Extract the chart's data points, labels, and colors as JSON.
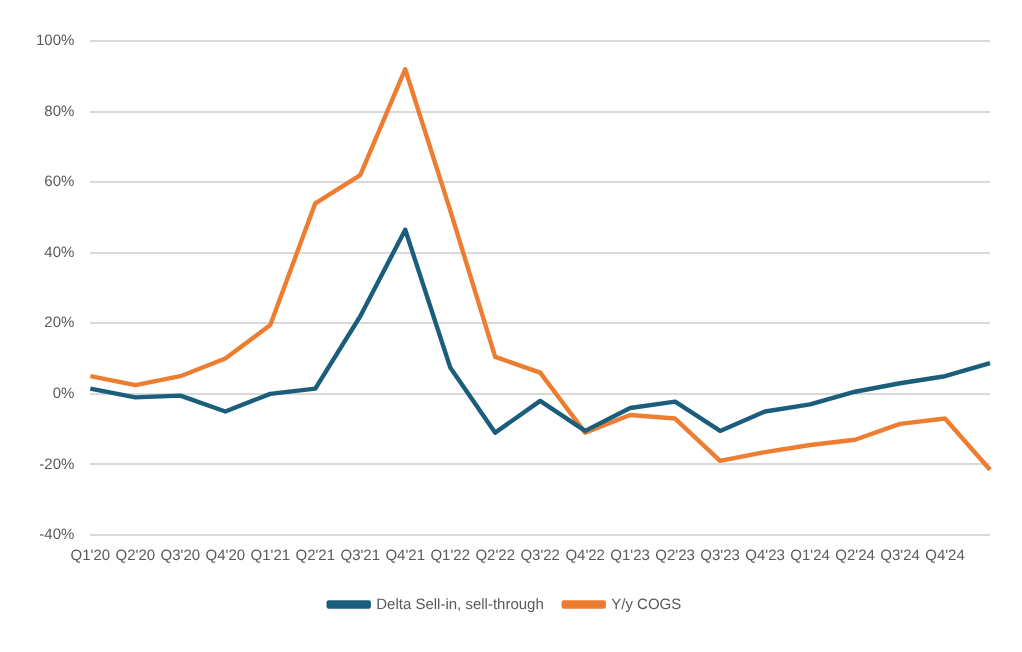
{
  "chart_data": {
    "type": "line",
    "categories": [
      "Q1'20",
      "Q2'20",
      "Q3'20",
      "Q4'20",
      "Q1'21",
      "Q2'21",
      "Q3'21",
      "Q4'21",
      "Q1'22",
      "Q2'22",
      "Q3'22",
      "Q4'22",
      "Q1'23",
      "Q2'23",
      "Q3'23",
      "Q4'23",
      "Q1'24",
      "Q2'24",
      "Q3'24",
      "Q4'24",
      null
    ],
    "series": [
      {
        "name": "Delta Sell-in, sell-through",
        "color": "#1b5e7b",
        "values": [
          1.5,
          -1,
          -0.5,
          -5,
          0,
          1.5,
          22,
          46.5,
          7.5,
          -11,
          -2,
          -10.5,
          -4,
          -2.2,
          -10.5,
          -5,
          -3,
          0.6,
          3,
          5,
          8.7
        ]
      },
      {
        "name": "Y/y COGS",
        "color": "#ed7d31",
        "values": [
          5,
          2.5,
          5,
          10,
          19.5,
          54,
          62,
          92,
          52,
          10.5,
          6,
          -11,
          -6,
          -7,
          -19,
          -16.5,
          -14.5,
          -13,
          -8.5,
          -7,
          -21.5
        ]
      }
    ],
    "ylim": [
      -40,
      100
    ],
    "yticks": [
      {
        "value": -40,
        "label": "-40%"
      },
      {
        "value": -20,
        "label": "-20%"
      },
      {
        "value": 0,
        "label": "0%"
      },
      {
        "value": 20,
        "label": "20%"
      },
      {
        "value": 40,
        "label": "40%"
      },
      {
        "value": 60,
        "label": "60%"
      },
      {
        "value": 80,
        "label": "80%"
      },
      {
        "value": 100,
        "label": "100%"
      }
    ],
    "grid": "y",
    "legend": "bottom",
    "marker": "none",
    "line_style": "solid"
  }
}
